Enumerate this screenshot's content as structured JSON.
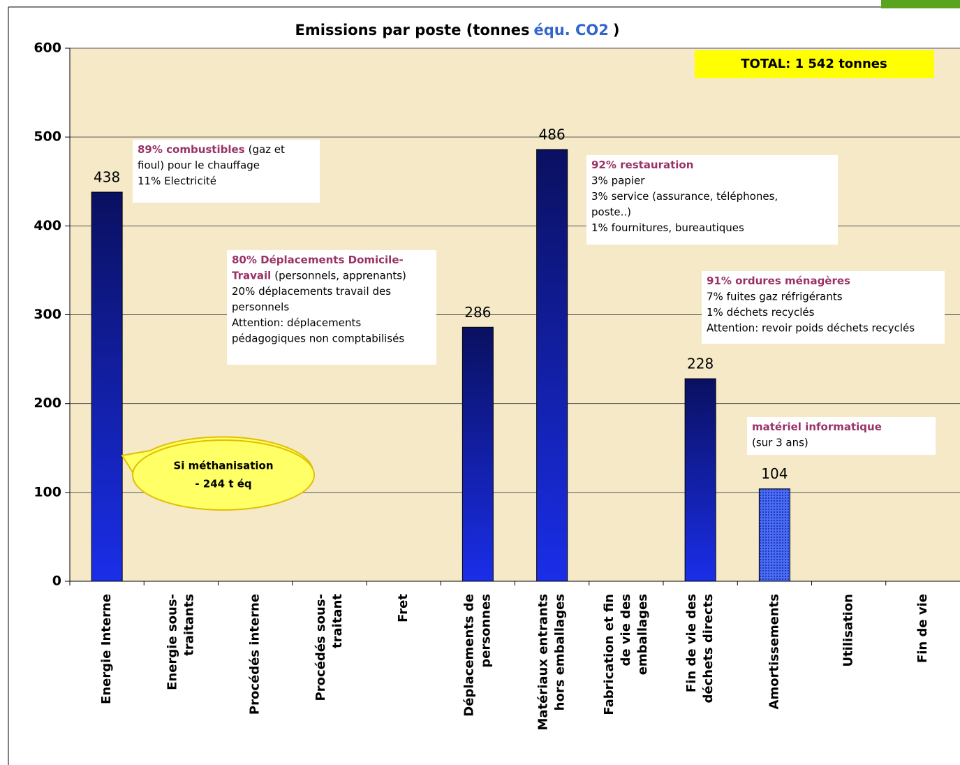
{
  "chart_data": {
    "type": "bar",
    "title": [
      {
        "text": "Emissions par poste (tonnes"
      },
      {
        "text": "équ. CO2",
        "color": "#3366cc"
      },
      {
        "text": ")"
      }
    ],
    "categories": [
      [
        "Energie Interne"
      ],
      [
        "Energie sous-",
        "traitants"
      ],
      [
        "Procédés interne"
      ],
      [
        "Procédés sous-",
        "traitant"
      ],
      [
        "Fret"
      ],
      [
        "Déplacements de",
        "personnes"
      ],
      [
        "Matériaux entrants",
        "hors emballages"
      ],
      [
        "Fabrication et fin",
        "de vie des",
        "emballages"
      ],
      [
        "Fin de vie des",
        "déchets directs"
      ],
      [
        "Amortissements"
      ],
      [
        "Utilisation"
      ],
      [
        "Fin de vie"
      ]
    ],
    "values": [
      438,
      null,
      null,
      null,
      null,
      286,
      486,
      null,
      228,
      104,
      null,
      null
    ],
    "colors": [
      "#1a2ee8",
      null,
      null,
      null,
      null,
      "#1a2ee8",
      "#1a2ee8",
      null,
      "#1a2ee8",
      "#4a6cf0",
      null,
      null
    ],
    "ylim": [
      0,
      600
    ],
    "yticks": [
      0,
      100,
      200,
      300,
      400,
      500,
      600
    ],
    "grid": true,
    "total": "TOTAL: 1 542 tonnes",
    "callout": [
      "Si méthanisation",
      "- 244 t éq"
    ],
    "annotations": [
      [
        [
          {
            "text": "89% combustibles",
            "bold": true
          },
          {
            "text": "(gaz et"
          }
        ],
        [
          {
            "text": "fioul) pour le chauffage"
          }
        ],
        [
          {
            "text": "11% Electricité"
          }
        ]
      ],
      [
        [
          {
            "text": "80% Déplacements Domicile-",
            "bold": true
          }
        ],
        [
          {
            "text": "Travail",
            "bold": true
          },
          {
            "text": "(personnels, apprenants)"
          }
        ],
        [
          {
            "text": "20% déplacements travail des"
          }
        ],
        [
          {
            "text": "personnels"
          }
        ],
        [
          {
            "text": "Attention: déplacements"
          }
        ],
        [
          {
            "text": "pédagogiques non comptabilisés"
          }
        ]
      ],
      [
        [
          {
            "text": "92% restauration",
            "bold": true
          }
        ],
        [
          {
            "text": "3% papier"
          }
        ],
        [
          {
            "text": "3% service (assurance, téléphones,"
          }
        ],
        [
          {
            "text": "poste..)"
          }
        ],
        [
          {
            "text": "1% fournitures, bureautiques"
          }
        ]
      ],
      [
        [
          {
            "text": "91% ordures ménagères",
            "bold": true
          }
        ],
        [
          {
            "text": "7% fuites gaz réfrigérants"
          }
        ],
        [
          {
            "text": "1% déchets recyclés"
          }
        ],
        [
          {
            "text": "Attention: revoir poids déchets recyclés"
          }
        ]
      ],
      [
        [
          {
            "text": "matériel informatique",
            "bold": true
          }
        ],
        [
          {
            "text": "(sur 3 ans)"
          }
        ]
      ]
    ]
  }
}
